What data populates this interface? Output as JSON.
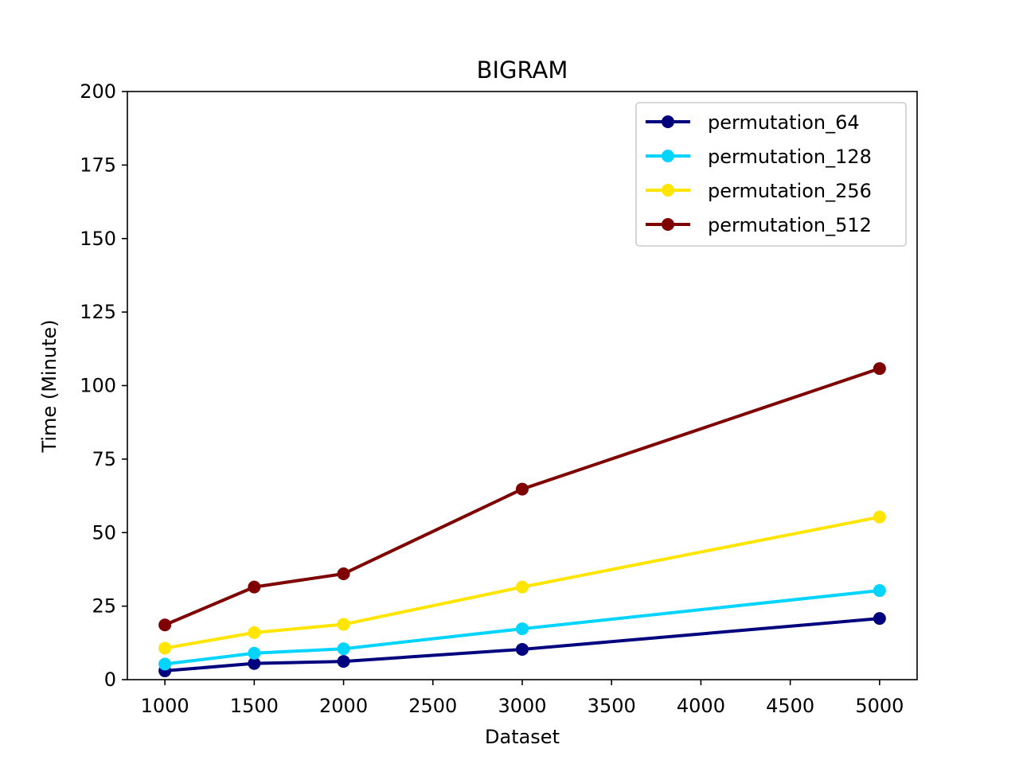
{
  "chart_data": {
    "type": "line",
    "title": "BIGRAM",
    "xlabel": "Dataset",
    "ylabel": "Time (Minute)",
    "x": [
      1000,
      1500,
      2000,
      3000,
      5000
    ],
    "xlim": [
      790,
      5210
    ],
    "ylim": [
      0,
      200
    ],
    "xticks": [
      1000,
      1500,
      2000,
      2500,
      3000,
      3500,
      4000,
      4500,
      5000
    ],
    "yticks": [
      0,
      25,
      50,
      75,
      100,
      125,
      150,
      175,
      200
    ],
    "grid": false,
    "legend_position": "top-right",
    "series": [
      {
        "name": "permutation_64",
        "color": "#00007f",
        "values": [
          3,
          5.5,
          6.2,
          10.3,
          20.8
        ]
      },
      {
        "name": "permutation_128",
        "color": "#00d4ff",
        "values": [
          5.3,
          9,
          10.5,
          17.3,
          30.3
        ]
      },
      {
        "name": "permutation_256",
        "color": "#ffe500",
        "values": [
          10.7,
          16,
          18.8,
          31.5,
          55.3
        ]
      },
      {
        "name": "permutation_512",
        "color": "#7f0000",
        "values": [
          18.6,
          31.5,
          36,
          64.8,
          105.8
        ]
      }
    ]
  }
}
